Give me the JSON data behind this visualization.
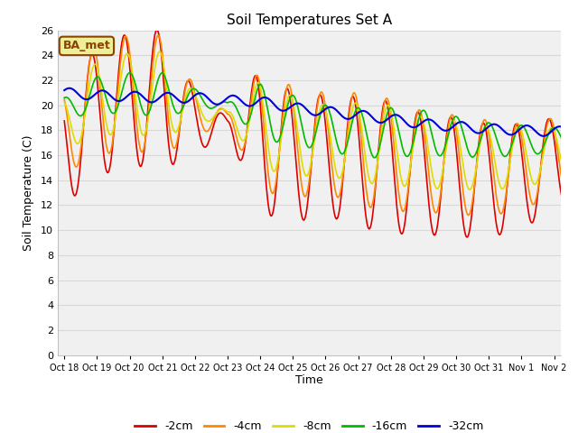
{
  "title": "Soil Temperatures Set A",
  "xlabel": "Time",
  "ylabel": "Soil Temperature (C)",
  "ylim": [
    0,
    26
  ],
  "yticks": [
    0,
    2,
    4,
    6,
    8,
    10,
    12,
    14,
    16,
    18,
    20,
    22,
    24,
    26
  ],
  "fig_bg": "#ffffff",
  "plot_bg": "#f0f0f0",
  "grid_color": "#d8d8d8",
  "legend_labels": [
    "-2cm",
    "-4cm",
    "-8cm",
    "-16cm",
    "-32cm"
  ],
  "legend_colors": [
    "#dd0000",
    "#ff8800",
    "#dddd00",
    "#00bb00",
    "#0000dd"
  ],
  "annotation_text": "BA_met",
  "annotation_bg": "#eeee99",
  "annotation_border": "#884400",
  "n_days": 16,
  "x_labels": [
    "Oct 18",
    "Oct 19",
    "Oct 20",
    "Oct 21",
    "Oct 22",
    "Oct 23",
    "Oct 24",
    "Oct 25",
    "Oct 26",
    "Oct 27",
    "Oct 28",
    "Oct 29",
    "Oct 30",
    "Oct 31",
    "Nov 1",
    "Nov 2"
  ],
  "points_per_day": 48,
  "amp_2cm": [
    4.5,
    5.2,
    5.3,
    5.6,
    2.5,
    0.5,
    5.8,
    5.2,
    4.8,
    5.2,
    5.3,
    4.8,
    4.8,
    4.5,
    4.3,
    3.5
  ],
  "amp_4cm": [
    3.5,
    4.5,
    4.6,
    4.8,
    2.0,
    0.4,
    4.8,
    4.5,
    4.0,
    4.5,
    4.5,
    4.0,
    4.0,
    3.8,
    3.5,
    3.0
  ],
  "amp_8cm": [
    2.0,
    3.0,
    3.2,
    3.5,
    1.2,
    0.3,
    3.5,
    3.2,
    2.8,
    3.2,
    3.2,
    2.8,
    2.8,
    2.5,
    2.5,
    2.0
  ],
  "amp_16cm": [
    0.8,
    1.5,
    1.6,
    1.8,
    0.8,
    0.2,
    2.2,
    2.0,
    1.8,
    2.0,
    2.0,
    1.8,
    1.6,
    1.4,
    1.2,
    1.0
  ],
  "amp_32cm": [
    0.4,
    0.4,
    0.4,
    0.4,
    0.4,
    0.4,
    0.4,
    0.4,
    0.4,
    0.4,
    0.4,
    0.4,
    0.4,
    0.4,
    0.4,
    0.4
  ],
  "mean_2cm": [
    16.5,
    19.5,
    20.5,
    20.5,
    18.5,
    18.5,
    17.2,
    15.8,
    16.0,
    15.5,
    15.0,
    14.5,
    14.2,
    14.0,
    14.2,
    15.5
  ],
  "mean_4cm": [
    18.0,
    20.5,
    21.0,
    20.8,
    19.5,
    19.0,
    18.0,
    17.0,
    17.0,
    16.5,
    16.0,
    15.5,
    15.2,
    15.0,
    15.0,
    16.0
  ],
  "mean_8cm": [
    18.5,
    20.5,
    21.0,
    20.8,
    19.8,
    19.2,
    18.5,
    17.5,
    17.2,
    17.0,
    16.8,
    16.2,
    16.0,
    15.8,
    15.8,
    16.2
  ],
  "mean_16cm": [
    19.8,
    20.8,
    21.0,
    20.8,
    20.5,
    20.0,
    19.5,
    18.8,
    18.2,
    17.8,
    17.8,
    17.8,
    17.5,
    17.2,
    17.2,
    17.2
  ],
  "mean_32cm": [
    21.0,
    20.8,
    20.7,
    20.6,
    20.6,
    20.4,
    20.3,
    19.8,
    19.5,
    19.2,
    18.9,
    18.5,
    18.3,
    18.1,
    18.0,
    17.9
  ]
}
